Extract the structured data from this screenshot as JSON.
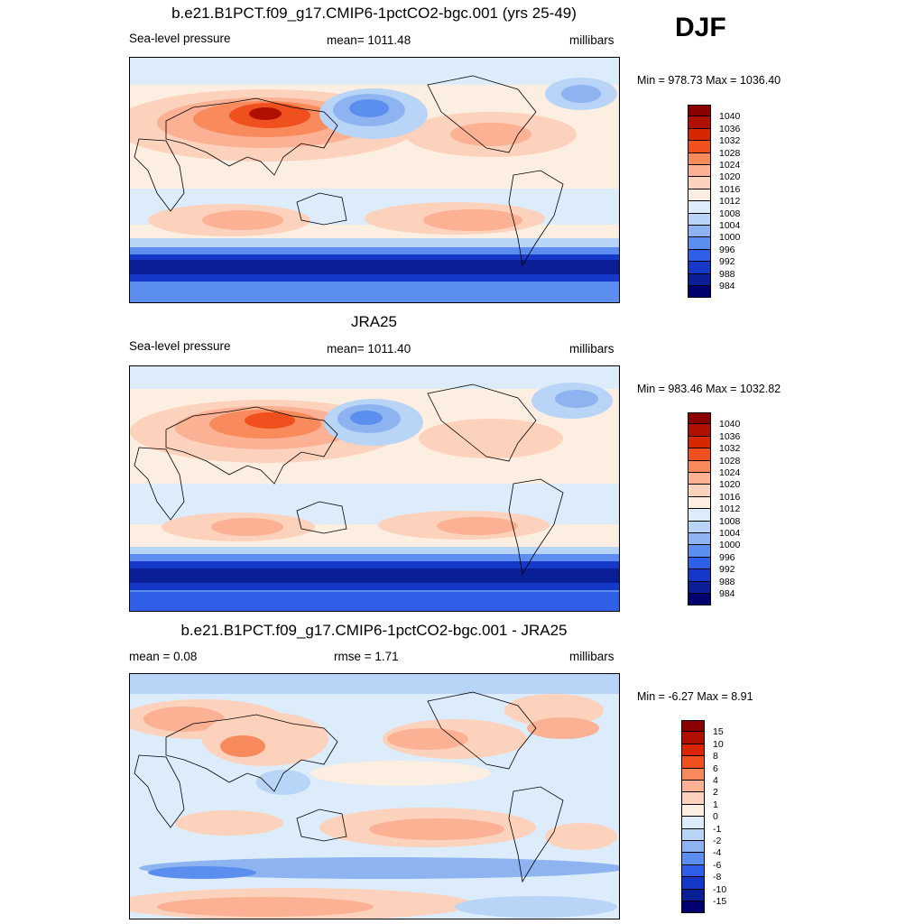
{
  "season": "DJF",
  "panels": [
    {
      "title": "b.e21.B1PCT.f09_g17.CMIP6-1pctCO2-bgc.001 (yrs 25-49)",
      "left_label": "Sea-level pressure",
      "center_label": "mean= 1011.48",
      "right_label": "millibars",
      "minmax": "Min = 978.73 Max = 1036.40",
      "levels": [
        "1040",
        "1036",
        "1032",
        "1028",
        "1024",
        "1020",
        "1016",
        "1012",
        "1008",
        "1004",
        "1000",
        "996",
        "992",
        "988",
        "984"
      ],
      "colors": [
        "#8b0000",
        "#b01000",
        "#d82600",
        "#f0501e",
        "#f88a5c",
        "#fcb094",
        "#fdd2bc",
        "#fdeee2",
        "#dcecfb",
        "#b8d4f6",
        "#8db4f0",
        "#5c8ef0",
        "#2f5fe6",
        "#1638c8",
        "#0a1e96",
        "#000070"
      ]
    },
    {
      "title": "JRA25",
      "left_label": "Sea-level pressure",
      "center_label": "mean= 1011.40",
      "right_label": "millibars",
      "minmax": "Min = 983.46 Max = 1032.82",
      "levels": [
        "1040",
        "1036",
        "1032",
        "1028",
        "1024",
        "1020",
        "1016",
        "1012",
        "1008",
        "1004",
        "1000",
        "996",
        "992",
        "988",
        "984"
      ],
      "colors": [
        "#8b0000",
        "#b01000",
        "#d82600",
        "#f0501e",
        "#f88a5c",
        "#fcb094",
        "#fdd2bc",
        "#fdeee2",
        "#dcecfb",
        "#b8d4f6",
        "#8db4f0",
        "#5c8ef0",
        "#2f5fe6",
        "#1638c8",
        "#0a1e96",
        "#000070"
      ]
    },
    {
      "title": "b.e21.B1PCT.f09_g17.CMIP6-1pctCO2-bgc.001 - JRA25",
      "left_label": "mean =   0.08",
      "center_label": "rmse =   1.71",
      "right_label": "millibars",
      "minmax": "Min =  -6.27 Max =   8.91",
      "levels": [
        "15",
        "10",
        "8",
        "6",
        "4",
        "2",
        "1",
        "0",
        "-1",
        "-2",
        "-4",
        "-6",
        "-8",
        "-10",
        "-15"
      ],
      "colors": [
        "#8b0000",
        "#b01000",
        "#d82600",
        "#f0501e",
        "#f88a5c",
        "#fcb094",
        "#fdd2bc",
        "#fdeee2",
        "#dcecfb",
        "#b8d4f6",
        "#8db4f0",
        "#5c8ef0",
        "#2f5fe6",
        "#1638c8",
        "#0a1e96",
        "#000070"
      ]
    }
  ]
}
